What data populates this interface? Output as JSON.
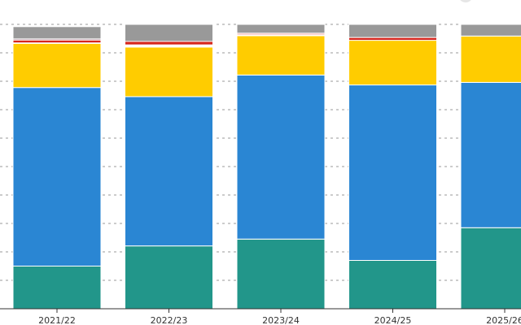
{
  "chart_data": {
    "type": "bar",
    "stacked": true,
    "normalized": true,
    "categories": [
      "2021/22",
      "2022/23",
      "2023/24",
      "2024/25",
      "2025/26"
    ],
    "ylim": [
      0,
      1
    ],
    "grid": true,
    "series": [
      {
        "color": "#22968a",
        "values": [
          0.15,
          0.221,
          0.245,
          0.17,
          0.285
        ]
      },
      {
        "color": "#2a86d3",
        "values": [
          0.628,
          0.525,
          0.577,
          0.617,
          0.511
        ]
      },
      {
        "color": "#ffcc00",
        "values": [
          0.155,
          0.174,
          0.138,
          0.157,
          0.163
        ]
      },
      {
        "color": "#ffffff",
        "values": [
          0.002,
          0.008,
          0.0,
          0.0,
          0.0
        ]
      },
      {
        "color": "#d6261b",
        "values": [
          0.01,
          0.012,
          0.003,
          0.01,
          0.0
        ]
      },
      {
        "color": "#6b1f3a",
        "values": [
          0.004,
          0.0,
          0.0,
          0.0,
          0.0
        ]
      },
      {
        "color": "#f2a6a0",
        "values": [
          0.0,
          0.0,
          0.006,
          0.0,
          0.0
        ]
      },
      {
        "color": "#999999",
        "values": [
          0.043,
          0.06,
          0.031,
          0.046,
          0.041
        ]
      }
    ]
  }
}
